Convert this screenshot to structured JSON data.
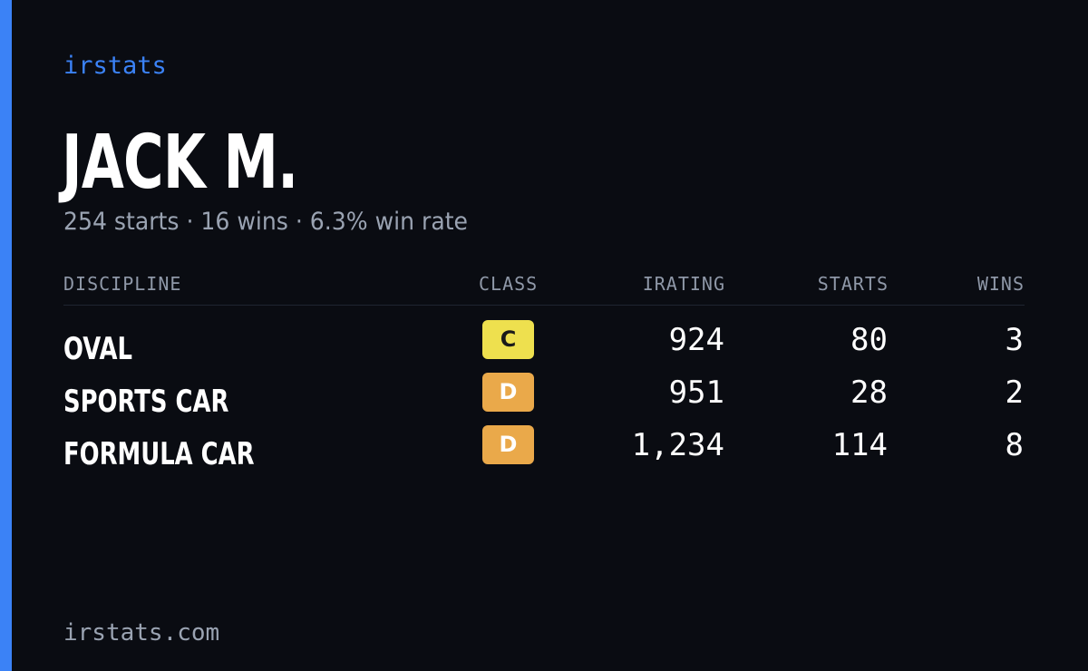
{
  "brand": "irstats",
  "player": {
    "name": "JACK M.",
    "summary": "254 starts · 16 wins · 6.3% win rate"
  },
  "table": {
    "headers": {
      "discipline": "DISCIPLINE",
      "class": "CLASS",
      "irating": "IRATING",
      "starts": "STARTS",
      "wins": "WINS"
    },
    "rows": [
      {
        "discipline": "OVAL",
        "class": "C",
        "irating": "924",
        "starts": "80",
        "wins": "3"
      },
      {
        "discipline": "SPORTS CAR",
        "class": "D",
        "irating": "951",
        "starts": "28",
        "wins": "2"
      },
      {
        "discipline": "FORMULA CAR",
        "class": "D",
        "irating": "1,234",
        "starts": "114",
        "wins": "8"
      }
    ]
  },
  "colors": {
    "accent": "#3b82f6",
    "background": "#0a0c12",
    "class_c": "#eee04e",
    "class_d": "#eaa94a"
  },
  "footer": {
    "url": "irstats.com"
  }
}
